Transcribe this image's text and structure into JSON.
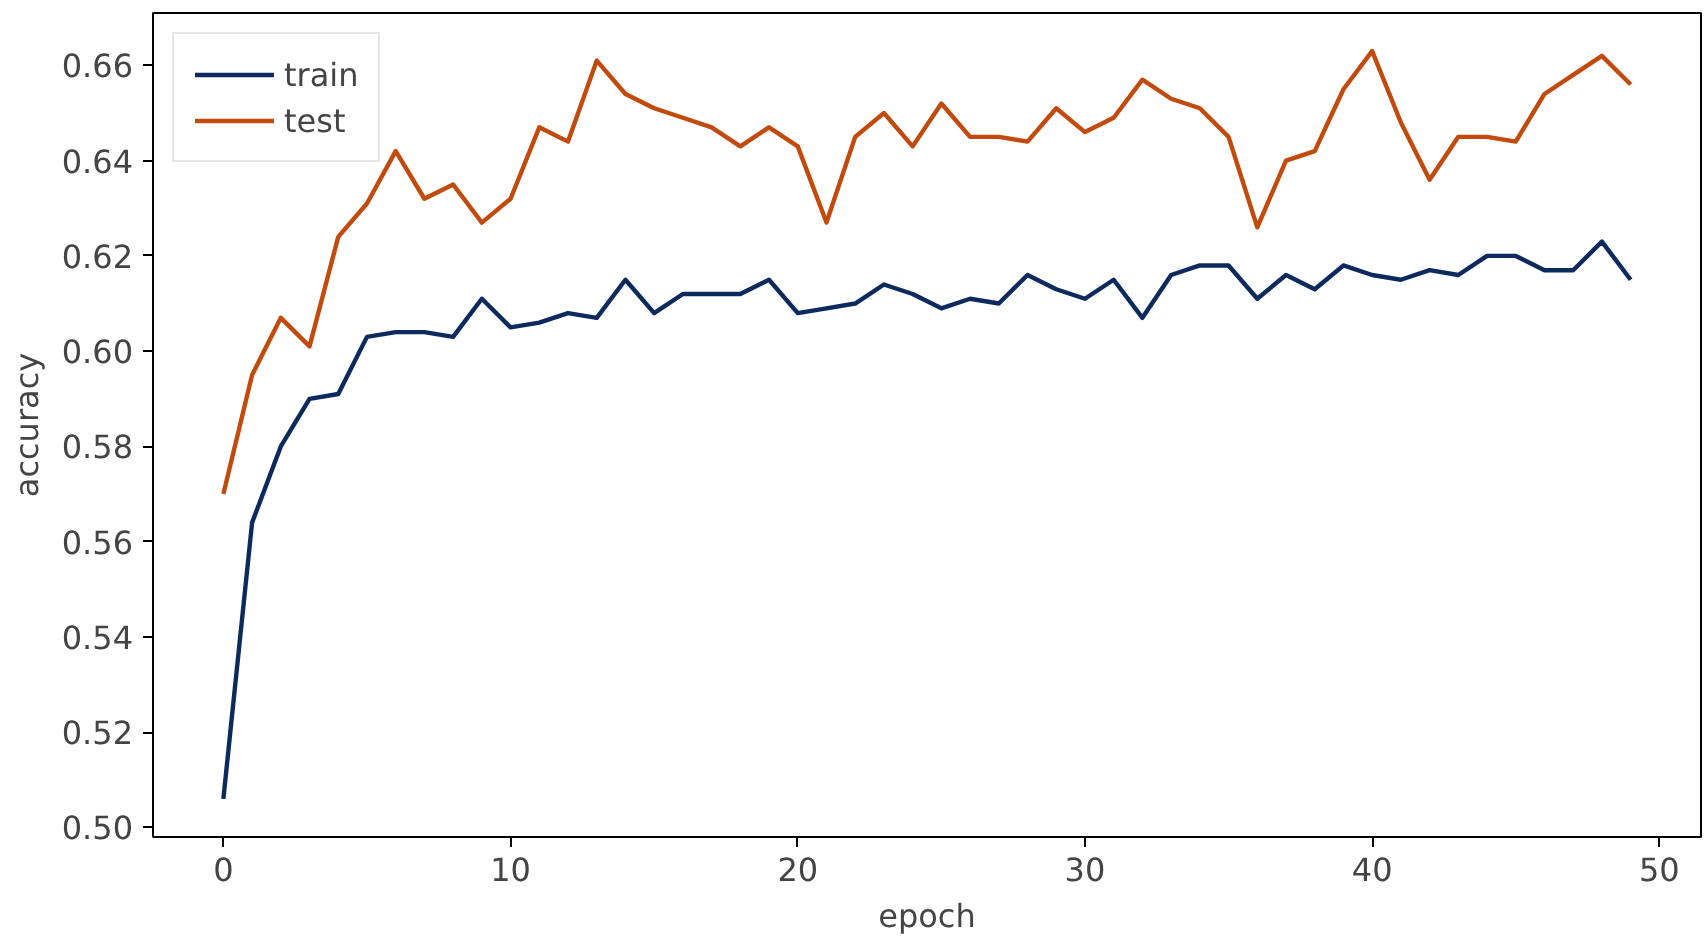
{
  "chart_data": {
    "type": "line",
    "xlabel": "epoch",
    "ylabel": "accuracy",
    "x": [
      0,
      1,
      2,
      3,
      4,
      5,
      6,
      7,
      8,
      9,
      10,
      11,
      12,
      13,
      14,
      15,
      16,
      17,
      18,
      19,
      20,
      21,
      22,
      23,
      24,
      25,
      26,
      27,
      28,
      29,
      30,
      31,
      32,
      33,
      34,
      35,
      36,
      37,
      38,
      39,
      40,
      41,
      42,
      43,
      44,
      45,
      46,
      47,
      48,
      49
    ],
    "series": [
      {
        "name": "train",
        "color": "#0d2a5e",
        "values": [
          0.506,
          0.564,
          0.58,
          0.59,
          0.591,
          0.603,
          0.604,
          0.604,
          0.603,
          0.611,
          0.605,
          0.606,
          0.608,
          0.607,
          0.615,
          0.608,
          0.612,
          0.612,
          0.612,
          0.615,
          0.608,
          0.609,
          0.61,
          0.614,
          0.612,
          0.609,
          0.611,
          0.61,
          0.616,
          0.613,
          0.611,
          0.615,
          0.607,
          0.616,
          0.618,
          0.618,
          0.611,
          0.616,
          0.613,
          0.618,
          0.616,
          0.615,
          0.617,
          0.616,
          0.62,
          0.62,
          0.617,
          0.617,
          0.623,
          0.615
        ]
      },
      {
        "name": "test",
        "color": "#c14a0c",
        "values": [
          0.57,
          0.595,
          0.607,
          0.601,
          0.624,
          0.631,
          0.642,
          0.632,
          0.635,
          0.627,
          0.632,
          0.647,
          0.644,
          0.661,
          0.654,
          0.651,
          0.649,
          0.647,
          0.643,
          0.647,
          0.643,
          0.627,
          0.645,
          0.65,
          0.643,
          0.652,
          0.645,
          0.645,
          0.644,
          0.651,
          0.646,
          0.649,
          0.657,
          0.653,
          0.651,
          0.645,
          0.626,
          0.64,
          0.642,
          0.655,
          0.663,
          0.648,
          0.636,
          0.645,
          0.645,
          0.644,
          0.654,
          0.658,
          0.662,
          0.656
        ]
      }
    ],
    "xlim": [
      -2.45,
      51.45
    ],
    "ylim": [
      0.498,
      0.671
    ],
    "xticks": [
      0,
      10,
      20,
      30,
      40,
      50
    ],
    "yticks": [
      {
        "value": 0.5,
        "label": "0.50"
      },
      {
        "value": 0.52,
        "label": "0.52"
      },
      {
        "value": 0.54,
        "label": "0.54"
      },
      {
        "value": 0.56,
        "label": "0.56"
      },
      {
        "value": 0.58,
        "label": "0.58"
      },
      {
        "value": 0.6,
        "label": "0.60"
      },
      {
        "value": 0.62,
        "label": "0.62"
      },
      {
        "value": 0.64,
        "label": "0.64"
      },
      {
        "value": 0.66,
        "label": "0.66"
      }
    ],
    "legend": "top left",
    "grid": false,
    "marker": "none",
    "line_style": "solid"
  }
}
